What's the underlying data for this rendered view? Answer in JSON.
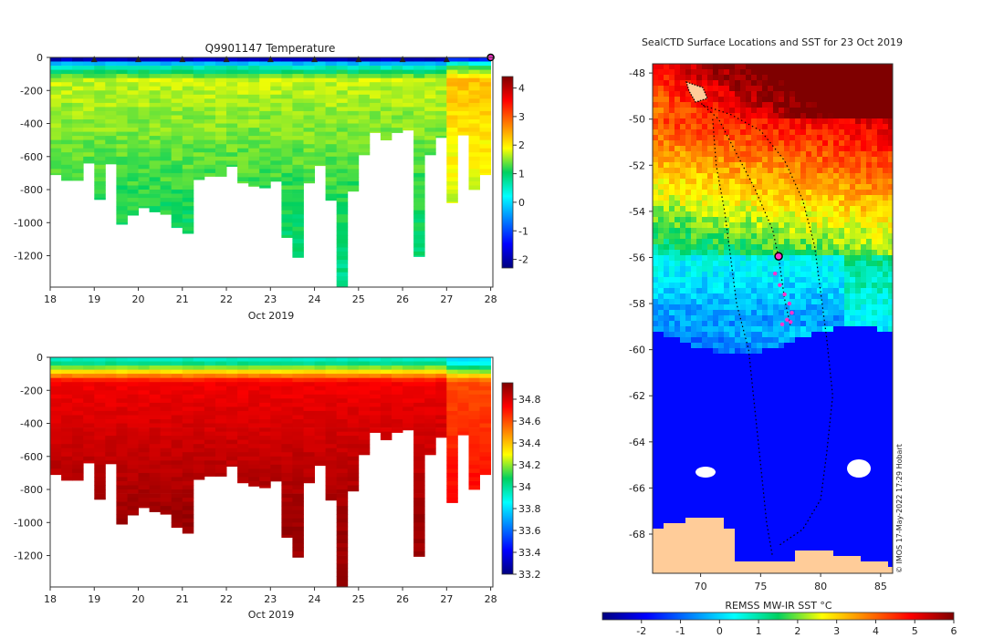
{
  "chart_data": [
    {
      "type": "heatmap",
      "title": "Q9901147  Temperature",
      "xlabel": "Oct 2019",
      "ylabel": "",
      "x_ticks": [
        "18",
        "19",
        "20",
        "21",
        "22",
        "23",
        "24",
        "25",
        "26",
        "27",
        "28"
      ],
      "xlim": [
        18,
        28.05
      ],
      "y_ticks": [
        "0",
        "-200",
        "-400",
        "-600",
        "-800",
        "-1000",
        "-1200"
      ],
      "ylim": [
        -1390,
        0
      ],
      "colorbar": {
        "range": [
          -2.3,
          4.4
        ],
        "ticks": [
          "-2",
          "-1",
          "0",
          "1",
          "2",
          "3",
          "4"
        ],
        "colormap": "jet"
      },
      "profile_times": [
        18.0,
        18.25,
        18.5,
        18.75,
        19.0,
        19.25,
        19.5,
        19.75,
        20.0,
        20.25,
        20.5,
        20.75,
        21.0,
        21.25,
        21.5,
        21.75,
        22.0,
        22.25,
        22.5,
        22.75,
        23.0,
        23.25,
        23.5,
        23.75,
        24.0,
        24.25,
        24.5,
        24.75,
        25.0,
        25.25,
        25.5,
        25.75,
        26.0,
        26.25,
        26.5,
        26.75,
        27.0,
        27.25,
        27.5,
        27.75
      ],
      "profile_depths": [
        710,
        745,
        745,
        640,
        860,
        645,
        1010,
        955,
        910,
        935,
        950,
        1030,
        1065,
        740,
        720,
        720,
        660,
        760,
        780,
        790,
        750,
        1090,
        1210,
        760,
        655,
        865,
        1390,
        810,
        590,
        455,
        500,
        455,
        440,
        1205,
        590,
        485,
        880,
        470,
        800,
        710
      ],
      "surface_locations_time": [
        19,
        20,
        21,
        22,
        23,
        24,
        25,
        26,
        27
      ],
      "current_profile_time": 28
    },
    {
      "type": "heatmap",
      "title": "",
      "xlabel": "Oct 2019",
      "ylabel": "",
      "x_ticks": [
        "18",
        "19",
        "20",
        "21",
        "22",
        "23",
        "24",
        "25",
        "26",
        "27",
        "28"
      ],
      "xlim": [
        18,
        28.05
      ],
      "y_ticks": [
        "0",
        "-200",
        "-400",
        "-600",
        "-800",
        "-1000",
        "-1200"
      ],
      "ylim": [
        -1390,
        0
      ],
      "colorbar": {
        "range": [
          33.2,
          34.95
        ],
        "ticks": [
          "33.2",
          "33.4",
          "33.6",
          "33.8",
          "34",
          "34.2",
          "34.4",
          "34.6",
          "34.8"
        ],
        "colormap": "jet"
      }
    },
    {
      "type": "heatmap",
      "title": "SealCTD Surface Locations and SST for 23 Oct 2019",
      "xlabel": "",
      "ylabel": "",
      "x_ticks": [
        "70",
        "75",
        "80",
        "85"
      ],
      "xlim": [
        66,
        86
      ],
      "y_ticks": [
        "-48",
        "-50",
        "-52",
        "-54",
        "-56",
        "-58",
        "-60",
        "-62",
        "-64",
        "-66",
        "-68"
      ],
      "ylim": [
        -69.7,
        -47.6
      ],
      "colorbar": {
        "label": "REMSS MW-IR SST °C",
        "range": [
          -3,
          6
        ],
        "ticks": [
          "-2",
          "-1",
          "0",
          "1",
          "2",
          "3",
          "4",
          "5",
          "6"
        ],
        "colormap": "jet"
      },
      "current_position": {
        "lon": 76.5,
        "lat": -55.95
      },
      "recent_positions": [
        [
          76.2,
          -56.7
        ],
        [
          76.6,
          -57.2
        ],
        [
          77.0,
          -57.6
        ],
        [
          77.4,
          -58.0
        ],
        [
          77.6,
          -58.4
        ],
        [
          77.2,
          -58.7
        ],
        [
          76.8,
          -58.9
        ],
        [
          77.5,
          -58.8
        ]
      ],
      "credit": "© IMOS 17-May-2022 17:29 Hobart"
    }
  ]
}
